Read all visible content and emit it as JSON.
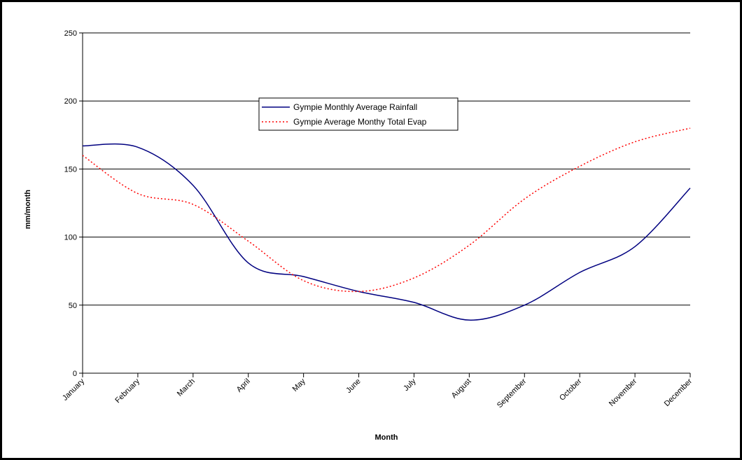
{
  "chart_data": {
    "type": "line",
    "title": "",
    "xlabel": "Month",
    "ylabel": "mm/month",
    "categories": [
      "January",
      "February",
      "March",
      "April",
      "May",
      "June",
      "July",
      "August",
      "September",
      "October",
      "November",
      "December"
    ],
    "ylim": [
      0,
      250
    ],
    "yticks": [
      0,
      50,
      100,
      150,
      200,
      250
    ],
    "grid": "horizontal",
    "legend_placement": "upper-center",
    "series": [
      {
        "name": "Gympie Monthly Average Rainfall",
        "color": "#000080",
        "style": "solid",
        "values": [
          167,
          166,
          138,
          81,
          71,
          60,
          52,
          39,
          50,
          74,
          93,
          136
        ]
      },
      {
        "name": "Gympie Average Monthy Total Evap",
        "color": "#ff0000",
        "style": "dotted",
        "values": [
          160,
          132,
          124,
          97,
          68,
          60,
          70,
          94,
          128,
          152,
          170,
          180
        ]
      }
    ]
  }
}
